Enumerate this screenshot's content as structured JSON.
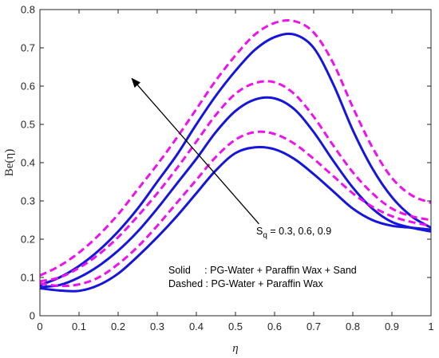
{
  "chart_data": {
    "type": "line",
    "xlabel": "η",
    "ylabel": "Be(η)",
    "xlim": [
      0,
      1
    ],
    "ylim": [
      0,
      0.8
    ],
    "xticks": [
      0,
      0.1,
      0.2,
      0.3,
      0.4,
      0.5,
      0.6,
      0.7,
      0.8,
      0.9,
      1
    ],
    "xtick_labels": [
      "0",
      "0.1",
      "0.2",
      "0.3",
      "0.4",
      "0.5",
      "0.6",
      "0.7",
      "0.8",
      "0.9",
      "1"
    ],
    "yticks": [
      0,
      0.1,
      0.2,
      0.3,
      0.4,
      0.5,
      0.6,
      0.7,
      0.8
    ],
    "ytick_labels": [
      "0",
      "0.1",
      "0.2",
      "0.3",
      "0.4",
      "0.5",
      "0.6",
      "0.7",
      "0.8"
    ],
    "grid": false,
    "annotations": {
      "arrow_label_main": "S",
      "arrow_label_sub": "q",
      "arrow_label_rest": " = 0.3, 0.6, 0.9",
      "legend_solid": "Solid     : PG-Water + Paraffin Wax + Sand",
      "legend_dashed": "Dashed : PG-Water + Paraffin Wax"
    },
    "arrow": {
      "from": [
        0.56,
        0.24
      ],
      "to": [
        0.235,
        0.62
      ]
    },
    "series": [
      {
        "style": "solid",
        "color": "#1515dd",
        "x": [
          0,
          0.05,
          0.1,
          0.15,
          0.2,
          0.25,
          0.3,
          0.35,
          0.4,
          0.45,
          0.5,
          0.55,
          0.6,
          0.65,
          0.7,
          0.75,
          0.8,
          0.85,
          0.9,
          0.95,
          1
        ],
        "y": [
          0.072,
          0.066,
          0.065,
          0.08,
          0.11,
          0.155,
          0.205,
          0.26,
          0.32,
          0.38,
          0.425,
          0.44,
          0.435,
          0.41,
          0.37,
          0.325,
          0.28,
          0.25,
          0.235,
          0.23,
          0.225
        ]
      },
      {
        "style": "solid",
        "color": "#1515dd",
        "x": [
          0,
          0.05,
          0.1,
          0.15,
          0.2,
          0.25,
          0.3,
          0.35,
          0.4,
          0.45,
          0.5,
          0.55,
          0.6,
          0.65,
          0.7,
          0.75,
          0.8,
          0.85,
          0.9,
          0.95,
          1
        ],
        "y": [
          0.075,
          0.08,
          0.1,
          0.13,
          0.17,
          0.22,
          0.28,
          0.345,
          0.41,
          0.48,
          0.535,
          0.565,
          0.568,
          0.54,
          0.48,
          0.405,
          0.335,
          0.28,
          0.245,
          0.23,
          0.22
        ]
      },
      {
        "style": "solid",
        "color": "#1515dd",
        "x": [
          0,
          0.05,
          0.1,
          0.15,
          0.2,
          0.25,
          0.3,
          0.35,
          0.4,
          0.45,
          0.5,
          0.55,
          0.6,
          0.65,
          0.7,
          0.75,
          0.8,
          0.85,
          0.9,
          0.95,
          1
        ],
        "y": [
          0.08,
          0.1,
          0.13,
          0.17,
          0.22,
          0.28,
          0.35,
          0.42,
          0.5,
          0.575,
          0.64,
          0.695,
          0.728,
          0.735,
          0.7,
          0.605,
          0.485,
          0.385,
          0.31,
          0.26,
          0.23
        ]
      },
      {
        "style": "dashed",
        "color": "#ee11ee",
        "x": [
          0,
          0.05,
          0.1,
          0.15,
          0.2,
          0.25,
          0.3,
          0.35,
          0.4,
          0.45,
          0.5,
          0.55,
          0.6,
          0.65,
          0.7,
          0.75,
          0.8,
          0.85,
          0.9,
          0.95,
          1
        ],
        "y": [
          0.085,
          0.078,
          0.082,
          0.1,
          0.135,
          0.18,
          0.235,
          0.295,
          0.355,
          0.415,
          0.46,
          0.48,
          0.475,
          0.45,
          0.41,
          0.365,
          0.32,
          0.285,
          0.26,
          0.245,
          0.235
        ]
      },
      {
        "style": "dashed",
        "color": "#ee11ee",
        "x": [
          0,
          0.05,
          0.1,
          0.15,
          0.2,
          0.25,
          0.3,
          0.35,
          0.4,
          0.45,
          0.5,
          0.55,
          0.6,
          0.65,
          0.7,
          0.75,
          0.8,
          0.85,
          0.9,
          0.95,
          1
        ],
        "y": [
          0.09,
          0.1,
          0.125,
          0.16,
          0.205,
          0.26,
          0.32,
          0.385,
          0.455,
          0.525,
          0.58,
          0.608,
          0.61,
          0.58,
          0.52,
          0.445,
          0.375,
          0.32,
          0.28,
          0.26,
          0.25
        ]
      },
      {
        "style": "dashed",
        "color": "#ee11ee",
        "x": [
          0,
          0.05,
          0.1,
          0.15,
          0.2,
          0.25,
          0.3,
          0.35,
          0.4,
          0.45,
          0.5,
          0.55,
          0.6,
          0.65,
          0.7,
          0.75,
          0.8,
          0.85,
          0.9,
          0.95,
          1
        ],
        "y": [
          0.105,
          0.13,
          0.165,
          0.21,
          0.265,
          0.33,
          0.395,
          0.465,
          0.54,
          0.615,
          0.68,
          0.735,
          0.765,
          0.77,
          0.74,
          0.66,
          0.545,
          0.44,
          0.36,
          0.315,
          0.295
        ]
      }
    ]
  }
}
